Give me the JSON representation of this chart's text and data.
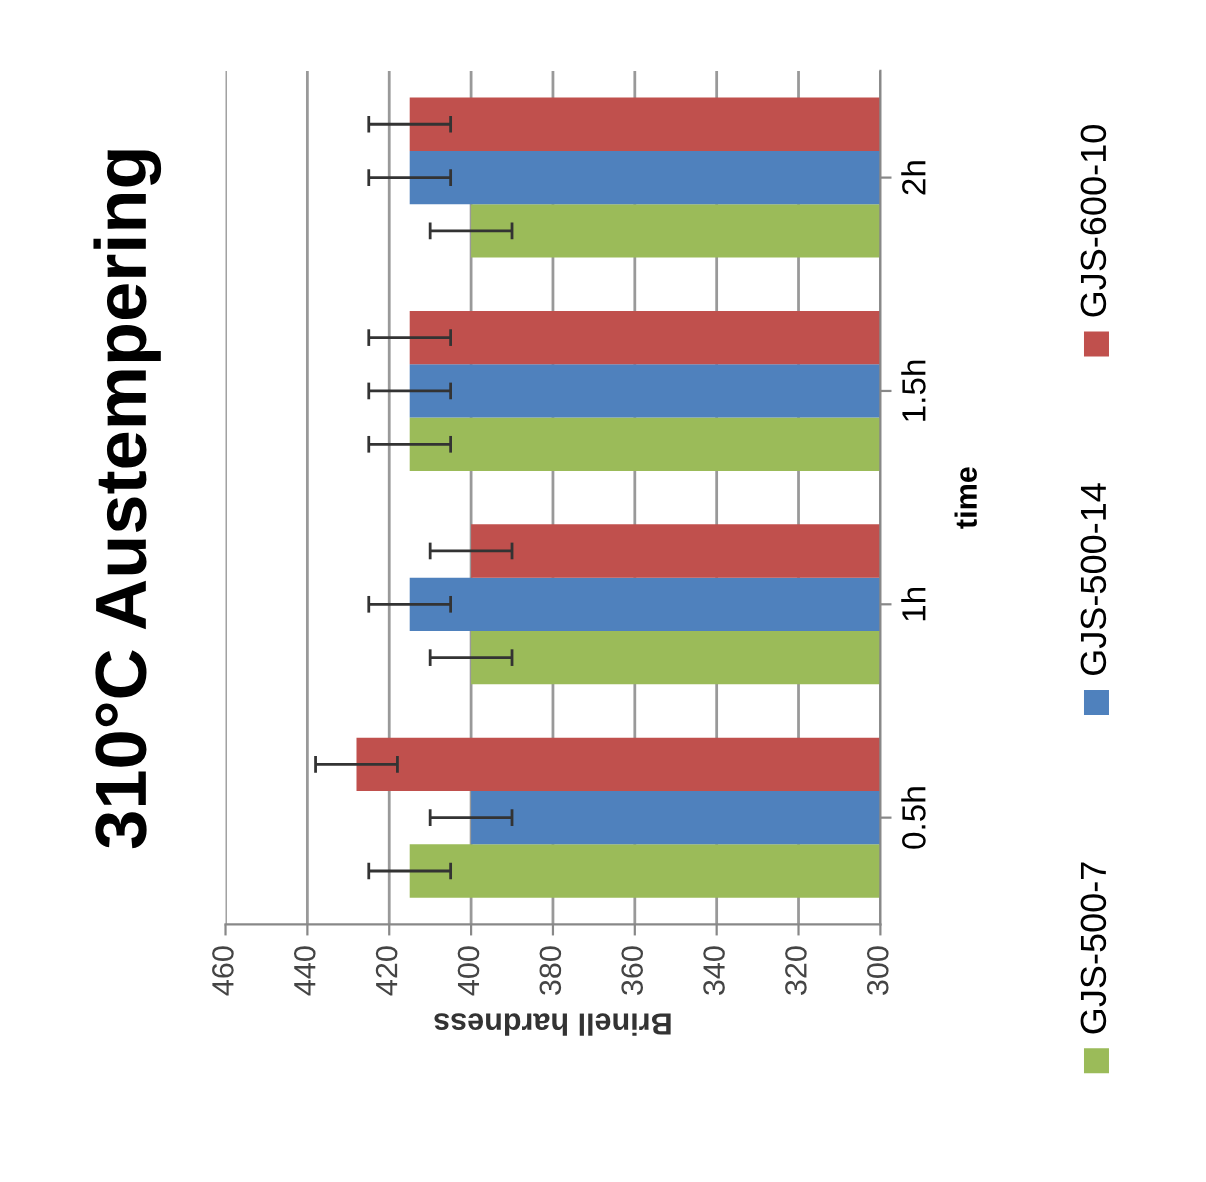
{
  "chart_data": {
    "type": "bar",
    "orientation": "horizontal",
    "title": "310°C Austempering",
    "xlabel": "Brinell hardness",
    "ylabel": "time",
    "categories": [
      "2h",
      "1.5h",
      "1h",
      "0.5h"
    ],
    "series": [
      {
        "name": "GJS-500-7",
        "color": "#9bbb59",
        "values": [
          400,
          415,
          400,
          415
        ],
        "errors": [
          10,
          10,
          10,
          10
        ]
      },
      {
        "name": "GJS-500-14",
        "color": "#4f81bd",
        "values": [
          415,
          415,
          415,
          400
        ],
        "errors": [
          10,
          10,
          10,
          10
        ]
      },
      {
        "name": "GJS-600-10",
        "color": "#c0504d",
        "values": [
          415,
          415,
          400,
          428
        ],
        "errors": [
          10,
          10,
          10,
          10
        ]
      }
    ],
    "xlim": [
      460,
      300
    ],
    "xticks": [
      460,
      440,
      420,
      400,
      380,
      360,
      340,
      320,
      300
    ],
    "grid": "x",
    "legend": "right"
  }
}
